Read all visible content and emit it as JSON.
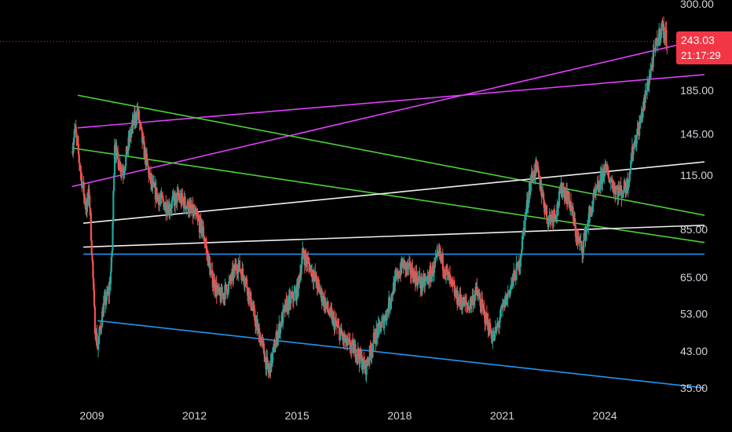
{
  "chart_data": {
    "type": "candlestick",
    "title": "",
    "y_scale": "log",
    "ylim": [
      32,
      300
    ],
    "xlim": [
      "2008-01-01",
      "2026-12-31"
    ],
    "grid": false,
    "y_ticks": [
      "300.00",
      "185.00",
      "145.00",
      "115.00",
      "85.00",
      "65.00",
      "53.00",
      "43.00",
      "35.00"
    ],
    "x_ticks": [
      "2009",
      "2012",
      "2015",
      "2018",
      "2021",
      "2024"
    ],
    "last_price": "243.03",
    "countdown": "21:17:29",
    "colors": {
      "up": "#26a69a",
      "down": "#ef5350",
      "last_price_line": "#f23645",
      "magenta": "#e040fb",
      "green": "#4cd137",
      "white": "#f0f0f0",
      "blue": "#2196f3"
    },
    "price_path": [
      [
        "2008-06",
        132
      ],
      [
        "2008-07",
        150
      ],
      [
        "2008-09",
        118
      ],
      [
        "2008-11",
        95
      ],
      [
        "2008-12",
        105
      ],
      [
        "2009-01",
        75
      ],
      [
        "2009-02",
        50
      ],
      [
        "2009-03",
        44
      ],
      [
        "2009-05",
        55
      ],
      [
        "2009-07",
        60
      ],
      [
        "2009-08",
        72
      ],
      [
        "2009-09",
        140
      ],
      [
        "2009-10",
        125
      ],
      [
        "2009-12",
        118
      ],
      [
        "2010-03",
        150
      ],
      [
        "2010-05",
        165
      ],
      [
        "2010-07",
        135
      ],
      [
        "2010-10",
        108
      ],
      [
        "2011-01",
        100
      ],
      [
        "2011-04",
        96
      ],
      [
        "2011-07",
        102
      ],
      [
        "2011-10",
        98
      ],
      [
        "2012-01",
        92
      ],
      [
        "2012-04",
        84
      ],
      [
        "2012-07",
        65
      ],
      [
        "2012-10",
        58
      ],
      [
        "2013-01",
        62
      ],
      [
        "2013-04",
        70
      ],
      [
        "2013-07",
        64
      ],
      [
        "2013-10",
        52
      ],
      [
        "2014-01",
        44
      ],
      [
        "2014-03",
        38
      ],
      [
        "2014-06",
        47
      ],
      [
        "2014-09",
        55
      ],
      [
        "2015-01",
        60
      ],
      [
        "2015-03",
        74
      ],
      [
        "2015-06",
        68
      ],
      [
        "2015-09",
        60
      ],
      [
        "2016-01",
        52
      ],
      [
        "2016-06",
        45
      ],
      [
        "2016-10",
        43
      ],
      [
        "2017-01",
        39
      ],
      [
        "2017-04",
        46
      ],
      [
        "2017-08",
        52
      ],
      [
        "2017-11",
        62
      ],
      [
        "2018-02",
        70
      ],
      [
        "2018-06",
        66
      ],
      [
        "2018-09",
        62
      ],
      [
        "2018-12",
        66
      ],
      [
        "2019-03",
        74
      ],
      [
        "2019-06",
        65
      ],
      [
        "2019-09",
        58
      ],
      [
        "2020-01",
        55
      ],
      [
        "2020-04",
        60
      ],
      [
        "2020-07",
        52
      ],
      [
        "2020-10",
        46
      ],
      [
        "2021-01",
        54
      ],
      [
        "2021-04",
        62
      ],
      [
        "2021-07",
        70
      ],
      [
        "2021-09",
        90
      ],
      [
        "2021-11",
        112
      ],
      [
        "2022-01",
        120
      ],
      [
        "2022-03",
        104
      ],
      [
        "2022-05",
        90
      ],
      [
        "2022-08",
        94
      ],
      [
        "2022-10",
        108
      ],
      [
        "2023-01",
        98
      ],
      [
        "2023-03",
        82
      ],
      [
        "2023-05",
        76
      ],
      [
        "2023-07",
        88
      ],
      [
        "2023-09",
        100
      ],
      [
        "2023-11",
        108
      ],
      [
        "2024-01",
        120
      ],
      [
        "2024-03",
        112
      ],
      [
        "2024-05",
        106
      ],
      [
        "2024-07",
        105
      ],
      [
        "2024-09",
        110
      ],
      [
        "2024-11",
        135
      ],
      [
        "2025-01",
        150
      ],
      [
        "2025-03",
        175
      ],
      [
        "2025-05",
        205
      ],
      [
        "2025-07",
        238
      ],
      [
        "2025-09",
        265
      ],
      [
        "2025-11",
        243
      ]
    ],
    "trendlines": [
      {
        "color": "magenta",
        "start": [
          "2008-06",
          108
        ],
        "end": [
          "2026-12",
          247
        ]
      },
      {
        "color": "magenta",
        "start": [
          "2008-08",
          150
        ],
        "end": [
          "2026-12",
          202
        ]
      },
      {
        "color": "green",
        "start": [
          "2008-08",
          180
        ],
        "end": [
          "2026-12",
          92
        ]
      },
      {
        "color": "green",
        "start": [
          "2008-06",
          134
        ],
        "end": [
          "2026-12",
          79
        ]
      },
      {
        "color": "white",
        "start": [
          "2008-10",
          88
        ],
        "end": [
          "2026-12",
          124
        ]
      },
      {
        "color": "white",
        "start": [
          "2008-10",
          77
        ],
        "end": [
          "2026-12",
          87
        ]
      },
      {
        "color": "blue",
        "start": [
          "2008-10",
          74
        ],
        "end": [
          "2026-12",
          74
        ]
      },
      {
        "color": "blue",
        "start": [
          "2009-03",
          51
        ],
        "end": [
          "2026-12",
          35
        ]
      }
    ]
  }
}
